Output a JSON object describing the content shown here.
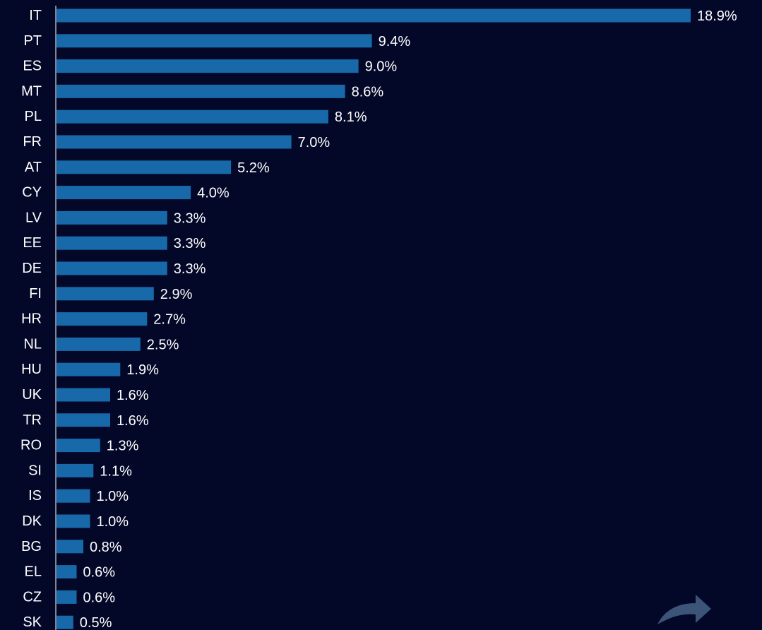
{
  "chart_data": {
    "type": "bar",
    "orientation": "horizontal",
    "title": "",
    "xlabel": "",
    "ylabel": "",
    "value_suffix": "%",
    "xlim": [
      0,
      18.9
    ],
    "grid": false,
    "legend": "none",
    "categories": [
      "IT",
      "PT",
      "ES",
      "MT",
      "PL",
      "FR",
      "AT",
      "CY",
      "LV",
      "EE",
      "DE",
      "FI",
      "HR",
      "NL",
      "HU",
      "UK",
      "TR",
      "RO",
      "SI",
      "IS",
      "DK",
      "BG",
      "EL",
      "CZ",
      "SK"
    ],
    "values": [
      18.9,
      9.4,
      9.0,
      8.6,
      8.1,
      7.0,
      5.2,
      4.0,
      3.3,
      3.3,
      3.3,
      2.9,
      2.7,
      2.5,
      1.9,
      1.6,
      1.6,
      1.3,
      1.1,
      1.0,
      1.0,
      0.8,
      0.6,
      0.6,
      0.5
    ],
    "value_labels": [
      "18.9%",
      "9.4%",
      "9.0%",
      "8.6%",
      "8.1%",
      "7.0%",
      "5.2%",
      "4.0%",
      "3.3%",
      "3.3%",
      "3.3%",
      "2.9%",
      "2.7%",
      "2.5%",
      "1.9%",
      "1.6%",
      "1.6%",
      "1.3%",
      "1.1%",
      "1.0%",
      "1.0%",
      "0.8%",
      "0.6%",
      "0.6%",
      "0.5%"
    ]
  },
  "colors": {
    "background": "#030828",
    "bar": "#1769aa",
    "text": "#ffffff",
    "share_icon": "#3b5478"
  },
  "icons": {
    "share": "share-arrow-icon"
  }
}
